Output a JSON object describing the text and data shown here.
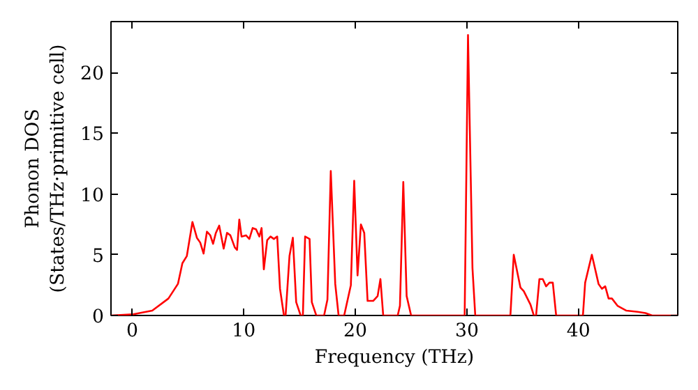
{
  "chart_data": {
    "type": "line",
    "xlabel": "Frequency (THz)",
    "ylabel": "Phonon DOS\n(States/THz·primitive cell)",
    "xlim": [
      -1.9,
      48.9
    ],
    "ylim": [
      0,
      24.2
    ],
    "xticks": [
      0,
      10,
      20,
      30,
      40
    ],
    "yticks": [
      0,
      5,
      10,
      15,
      20
    ],
    "grid": false,
    "series": [
      {
        "color": "#ff0000",
        "x": [
          -1.9,
          0.1,
          1.8,
          3.25,
          4.1,
          4.5,
          4.9,
          5.4,
          5.8,
          6.1,
          6.4,
          6.7,
          7.0,
          7.25,
          7.5,
          7.8,
          8.2,
          8.5,
          8.8,
          9.2,
          9.4,
          9.6,
          9.8,
          10.2,
          10.5,
          10.8,
          11.1,
          11.4,
          11.6,
          11.8,
          12.1,
          12.4,
          12.7,
          13.0,
          13.25,
          13.6,
          13.75,
          14.1,
          14.4,
          14.7,
          15.1,
          15.3,
          15.5,
          15.9,
          16.1,
          16.5,
          17.2,
          17.5,
          17.8,
          18.2,
          18.5,
          19.0,
          19.6,
          19.9,
          20.2,
          20.5,
          20.8,
          21.1,
          21.6,
          22.0,
          22.25,
          22.5,
          23.8,
          24.0,
          24.3,
          24.6,
          25.0,
          29.8,
          30.1,
          30.5,
          30.75,
          33.9,
          34.2,
          34.8,
          35.1,
          35.7,
          36.0,
          36.2,
          36.5,
          36.8,
          37.1,
          37.4,
          37.7,
          38.0,
          40.4,
          40.6,
          41.2,
          41.8,
          42.1,
          42.4,
          42.7,
          43.0,
          43.5,
          44.3,
          45.3,
          46.0,
          46.6,
          48.9
        ],
        "values": [
          0,
          0.1,
          0.4,
          1.4,
          2.6,
          4.3,
          4.9,
          7.7,
          6.4,
          6.0,
          5.1,
          6.9,
          6.6,
          5.9,
          6.8,
          7.4,
          5.5,
          6.8,
          6.6,
          5.6,
          5.4,
          7.9,
          6.5,
          6.6,
          6.3,
          7.2,
          7.1,
          6.5,
          7.2,
          3.8,
          6.2,
          6.5,
          6.3,
          6.5,
          2.2,
          0,
          0,
          4.9,
          6.4,
          1.1,
          0,
          0,
          6.5,
          6.3,
          1.1,
          0,
          0,
          1.3,
          11.9,
          2.6,
          0,
          0,
          2.5,
          11.1,
          3.3,
          7.5,
          6.8,
          1.2,
          1.2,
          1.6,
          3.0,
          0,
          0,
          0.8,
          11.0,
          1.6,
          0,
          0,
          23.1,
          3.9,
          0,
          0,
          5.0,
          2.3,
          2.0,
          0.9,
          0,
          0,
          3.0,
          3.0,
          2.4,
          2.7,
          2.7,
          0,
          0,
          2.7,
          5.0,
          2.6,
          2.2,
          2.4,
          1.4,
          1.4,
          0.8,
          0.4,
          0.3,
          0.2,
          0,
          0
        ]
      }
    ]
  }
}
